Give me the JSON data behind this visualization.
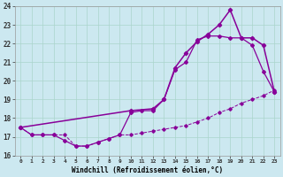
{
  "title": "",
  "xlabel": "Windchill (Refroidissement éolien,°C)",
  "ylabel": "",
  "bg_color": "#cce8f0",
  "grid_color": "#aad4cc",
  "line_color": "#880099",
  "xlim": [
    -0.5,
    23.5
  ],
  "ylim": [
    16,
    24
  ],
  "xticks": [
    0,
    1,
    2,
    3,
    4,
    5,
    6,
    7,
    8,
    9,
    10,
    11,
    12,
    13,
    14,
    15,
    16,
    17,
    18,
    19,
    20,
    21,
    22,
    23
  ],
  "yticks": [
    16,
    17,
    18,
    19,
    20,
    21,
    22,
    23,
    24
  ],
  "line1_x": [
    0,
    1,
    2,
    3,
    4,
    5,
    6,
    7,
    8,
    9,
    10,
    11,
    12,
    13,
    14,
    15,
    16,
    17,
    18,
    19,
    20,
    21,
    22,
    23
  ],
  "line1_y": [
    17.5,
    17.1,
    17.1,
    17.1,
    17.1,
    16.5,
    16.5,
    16.7,
    16.9,
    17.1,
    17.1,
    17.2,
    17.3,
    17.4,
    17.5,
    17.6,
    17.8,
    18.0,
    18.3,
    18.5,
    18.8,
    19.0,
    19.2,
    19.5
  ],
  "line2_x": [
    0,
    1,
    2,
    3,
    4,
    5,
    6,
    7,
    8,
    9,
    10,
    11,
    12,
    13,
    14,
    15,
    16,
    17,
    18,
    19,
    20,
    21,
    22,
    23
  ],
  "line2_y": [
    17.5,
    17.1,
    17.1,
    17.1,
    16.8,
    16.5,
    16.5,
    16.7,
    16.9,
    17.1,
    18.3,
    18.4,
    18.4,
    19.0,
    20.6,
    21.0,
    22.2,
    22.4,
    22.4,
    22.3,
    22.3,
    21.9,
    20.5,
    19.4
  ],
  "line3_x": [
    0,
    10,
    12,
    13,
    14,
    15,
    16,
    17,
    18,
    19,
    20,
    21,
    22,
    23
  ],
  "line3_y": [
    17.5,
    18.4,
    18.5,
    19.0,
    20.7,
    21.5,
    22.1,
    22.5,
    23.0,
    23.8,
    22.3,
    22.3,
    21.9,
    19.4
  ]
}
